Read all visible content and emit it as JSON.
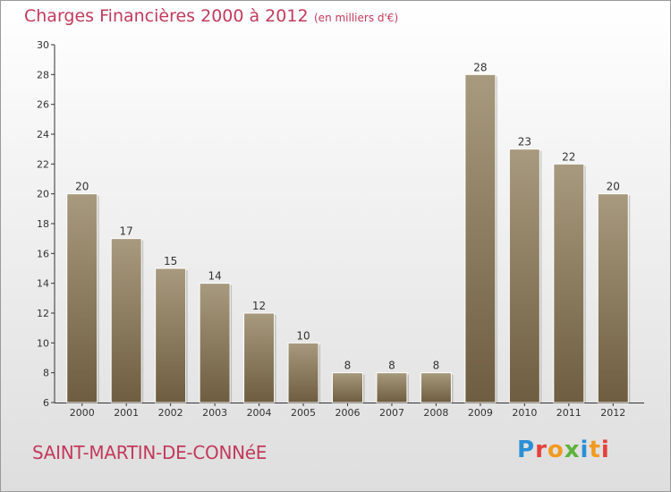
{
  "header": {
    "title": "Charges Financières 2000 à 2012",
    "subtitle": "(en milliers d'€)"
  },
  "footer": {
    "town": "SAINT-MARTIN-DE-CONNéE",
    "brand_letters": [
      "P",
      "r",
      "o",
      "x",
      "i",
      "t",
      "i"
    ]
  },
  "colors": {
    "title": "#c23a5b",
    "bar_top": "#a89a7e",
    "bar_bottom": "#6e5d40",
    "axis": "#333333"
  },
  "chart_data": {
    "type": "bar",
    "categories": [
      "2000",
      "2001",
      "2002",
      "2003",
      "2004",
      "2005",
      "2006",
      "2007",
      "2008",
      "2009",
      "2010",
      "2011",
      "2012"
    ],
    "values": [
      20,
      17,
      15,
      14,
      12,
      10,
      8,
      8,
      8,
      28,
      23,
      22,
      20
    ],
    "data_labels": [
      "20",
      "17",
      "15",
      "14",
      "12",
      "10",
      "8",
      "8",
      "8",
      "28",
      "23",
      "22",
      "20"
    ],
    "title": "Charges Financières 2000 à 2012",
    "subtitle": "(en milliers d'€)",
    "xlabel": "",
    "ylabel": "",
    "ylim": [
      6,
      30
    ],
    "yticks": [
      6,
      8,
      10,
      12,
      14,
      16,
      18,
      20,
      22,
      24,
      26,
      28,
      30
    ],
    "grid": false,
    "legend": "none"
  }
}
